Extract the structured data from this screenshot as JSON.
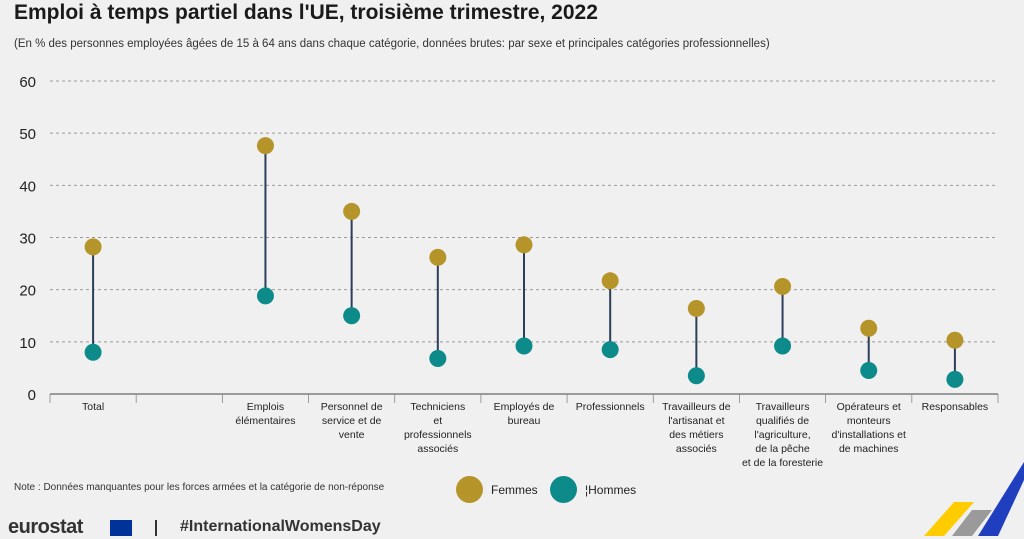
{
  "title": "Emploi à temps partiel dans l'UE, troisième trimestre, 2022",
  "subtitle": "(En % des personnes employées âgées de 15 à 64 ans dans chaque catégorie, données brutes: par sexe et principales catégories professionnelles)",
  "note": "Note : Données manquantes pour les forces armées et la catégorie de non-réponse",
  "legend": {
    "women": "Femmes",
    "men": "¦Hommes"
  },
  "footer": {
    "brand": "eurostat",
    "hashtag": "#InternationalWomensDay"
  },
  "colors": {
    "women": "#b5952a",
    "men": "#0d8a8a",
    "line": "#2c3e5a",
    "grid": "#9a9a9a"
  },
  "chart_data": {
    "type": "dot-range",
    "ylim": [
      0,
      60
    ],
    "yticks": [
      0,
      10,
      20,
      30,
      40,
      50,
      60
    ],
    "categories": [
      [
        "Total"
      ],
      [],
      [
        "Emplois",
        "élémentaires"
      ],
      [
        "Personnel de",
        "service et de",
        "vente"
      ],
      [
        "Techniciens",
        "et",
        "professionnels",
        "associés"
      ],
      [
        "Employés de",
        "bureau"
      ],
      [
        "Professionnels"
      ],
      [
        "Travailleurs de",
        "l'artisanat et",
        "des métiers",
        "associés"
      ],
      [
        "Travailleurs",
        "qualifiés de",
        "l'agriculture,",
        "de la pêche",
        "et de la foresterie"
      ],
      [
        "Opérateurs et",
        "monteurs",
        "d'installations et",
        "de machines"
      ],
      [
        "Responsables"
      ]
    ],
    "series": [
      {
        "name": "Femmes",
        "values": [
          28.2,
          null,
          47.6,
          35.0,
          26.2,
          28.6,
          21.7,
          16.4,
          20.6,
          12.6,
          10.3
        ]
      },
      {
        "name": "Hommes",
        "values": [
          8.0,
          null,
          18.8,
          15.0,
          6.8,
          9.2,
          8.5,
          3.5,
          9.2,
          4.5,
          2.8
        ]
      }
    ]
  }
}
